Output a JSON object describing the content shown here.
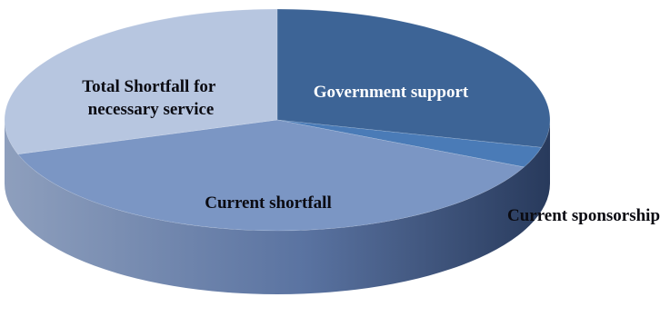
{
  "chart_data": {
    "type": "pie",
    "style": "3d",
    "slices": [
      {
        "label": "Government support",
        "value": 29,
        "color": "#3d6496",
        "label_color": "#ffffff"
      },
      {
        "label": "Current sponsorship",
        "value": 3,
        "color": "#4a7bb7",
        "label_color": "#0b0b12"
      },
      {
        "label": "Current shortfall",
        "value": 38,
        "color": "#7b96c4",
        "label_color": "#0b0b12"
      },
      {
        "label": "Total Shortfall for necessary service",
        "value": 30,
        "color": "#b7c6e0",
        "label_color": "#0b0b12"
      }
    ],
    "legend": "none",
    "data_labels": "inside"
  }
}
